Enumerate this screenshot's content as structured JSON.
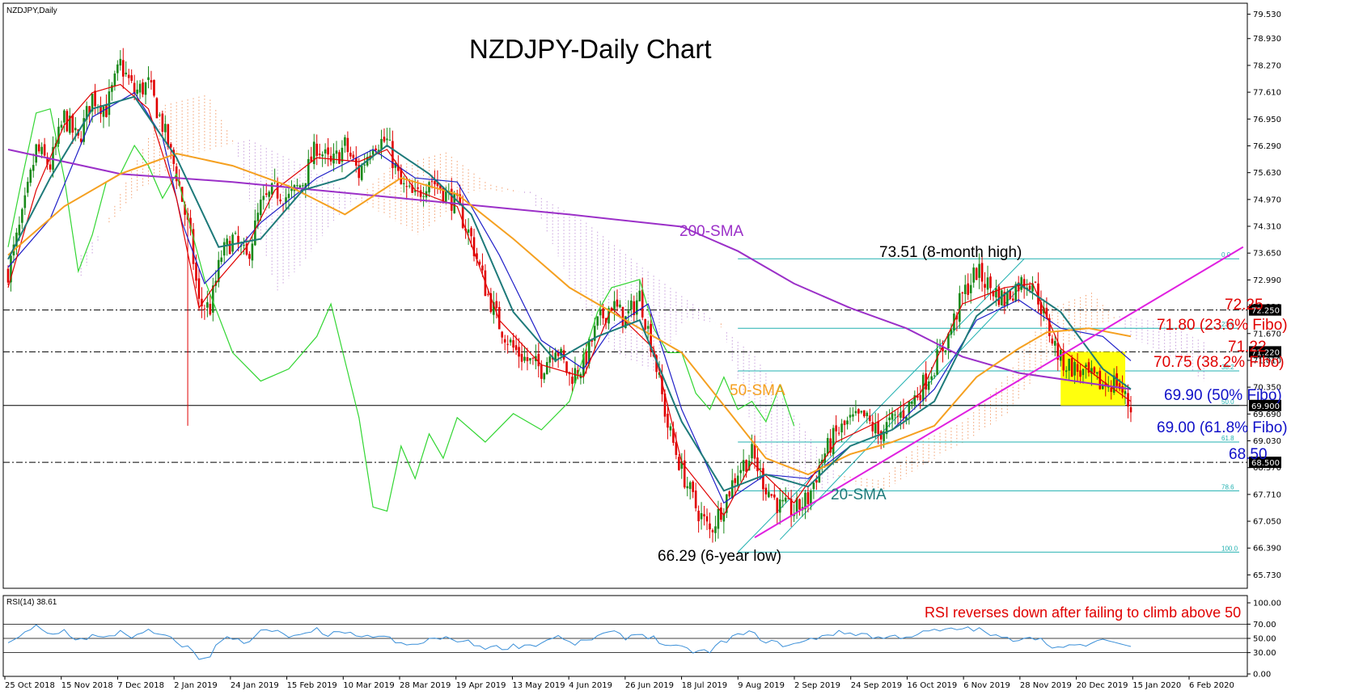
{
  "symbol_label": "NZDJPY,Daily",
  "rsi_label": "RSI(14) 38.61",
  "chart_title": "NZDJPY-Daily Chart",
  "colors": {
    "bull": "#1a8a1a",
    "bear": "#e00000",
    "sma200": "#9b30c8",
    "sma50": "#f5a020",
    "sma20": "#1e7a7a",
    "tenkan": "#e00000",
    "kijun": "#2020c8",
    "chikou": "#33d633",
    "trendline": "#e020e0",
    "fib": "#20b0b0",
    "highlight": "#ffff00",
    "rsi": "#3a8fd8",
    "annotation_red": "#e00000",
    "annotation_blue": "#1010c8",
    "annotation_teal": "#1e7a7a",
    "annotation_orange": "#f5a020",
    "annotation_purple": "#9b30c8"
  },
  "annotations": {
    "sma200": "200-SMA",
    "sma50": "50-SMA",
    "sma20": "20-SMA",
    "high": "73.51 (8-month high)",
    "low": "66.29 (6-year low)",
    "lvl_7225": "72.25",
    "fib_236": "71.80 (23.6% Fibo)",
    "lvl_7122": "71.22",
    "fib_382": "70.75 (38.2% Fibo)",
    "fib_50": "69.90 (50% Fibo)",
    "fib_618": "69.00 (61.8% Fibo)",
    "lvl_6850": "68.50",
    "rsi_note": "RSI reverses down after failing to climb above 50"
  },
  "fib_tags": [
    "0.0",
    "23.6",
    "38.2",
    "50.0",
    "61.8",
    "78.6",
    "100.0"
  ],
  "chart_data": {
    "type": "candlestick",
    "title": "NZDJPY-Daily Chart",
    "price_ticks": [
      "79.530",
      "78.930",
      "78.270",
      "77.610",
      "76.950",
      "76.290",
      "75.630",
      "74.970",
      "74.310",
      "73.650",
      "72.990",
      "72.330",
      "71.670",
      "71.010",
      "70.350",
      "69.690",
      "69.030",
      "68.370",
      "67.710",
      "67.050",
      "66.390",
      "65.730"
    ],
    "price_range": [
      65.4,
      79.8
    ],
    "highlighted_prices": [
      "72.250",
      "71.220",
      "69.900",
      "68.500"
    ],
    "x_labels": [
      "25 Oct 2018",
      "15 Nov 2018",
      "7 Dec 2018",
      "2 Jan 2019",
      "24 Jan 2019",
      "15 Feb 2019",
      "10 Mar 2019",
      "28 Mar 2019",
      "19 Apr 2019",
      "13 May 2019",
      "4 Jun 2019",
      "26 Jun 2019",
      "18 Jul 2019",
      "9 Aug 2019",
      "2 Sep 2019",
      "24 Sep 2019",
      "16 Oct 2019",
      "6 Nov 2019",
      "28 Nov 2019",
      "20 Dec 2019",
      "15 Jan 2020",
      "6 Feb 2020"
    ],
    "horizontal_levels": [
      72.25,
      71.22,
      68.5
    ],
    "fib_levels": [
      {
        "pct": "0.0",
        "price": 73.51
      },
      {
        "pct": "23.6",
        "price": 71.8
      },
      {
        "pct": "38.2",
        "price": 70.75
      },
      {
        "pct": "50.0",
        "price": 69.9
      },
      {
        "pct": "61.8",
        "price": 69.0
      },
      {
        "pct": "78.6",
        "price": 67.8
      },
      {
        "pct": "100.0",
        "price": 66.29
      }
    ],
    "close_path": [
      [
        0,
        73.2
      ],
      [
        5,
        74.5
      ],
      [
        10,
        76.2
      ],
      [
        15,
        75.8
      ],
      [
        20,
        77.0
      ],
      [
        25,
        76.4
      ],
      [
        30,
        77.5
      ],
      [
        35,
        77.2
      ],
      [
        40,
        78.3
      ],
      [
        45,
        77.6
      ],
      [
        50,
        77.8
      ],
      [
        55,
        76.8
      ],
      [
        60,
        75.6
      ],
      [
        65,
        74.0
      ],
      [
        68,
        72.4
      ],
      [
        72,
        72.3
      ],
      [
        76,
        73.6
      ],
      [
        80,
        74.0
      ],
      [
        85,
        73.5
      ],
      [
        90,
        74.8
      ],
      [
        95,
        75.2
      ],
      [
        100,
        75.0
      ],
      [
        105,
        75.4
      ],
      [
        110,
        76.3
      ],
      [
        115,
        75.8
      ],
      [
        120,
        76.3
      ],
      [
        125,
        75.6
      ],
      [
        130,
        76.4
      ],
      [
        135,
        76.4
      ],
      [
        140,
        75.3
      ],
      [
        145,
        75.0
      ],
      [
        150,
        75.5
      ],
      [
        155,
        75.2
      ],
      [
        160,
        74.8
      ],
      [
        165,
        74.0
      ],
      [
        170,
        72.8
      ],
      [
        175,
        71.9
      ],
      [
        180,
        71.3
      ],
      [
        185,
        71.0
      ],
      [
        190,
        70.8
      ],
      [
        195,
        71.4
      ],
      [
        200,
        70.6
      ],
      [
        205,
        70.9
      ],
      [
        210,
        71.9
      ],
      [
        215,
        72.4
      ],
      [
        220,
        72.0
      ],
      [
        225,
        72.6
      ],
      [
        230,
        71.2
      ],
      [
        235,
        69.4
      ],
      [
        240,
        68.3
      ],
      [
        245,
        67.4
      ],
      [
        250,
        66.8
      ],
      [
        255,
        67.5
      ],
      [
        260,
        68.3
      ],
      [
        265,
        68.7
      ],
      [
        270,
        67.9
      ],
      [
        275,
        67.4
      ],
      [
        280,
        67.3
      ],
      [
        285,
        67.6
      ],
      [
        290,
        68.6
      ],
      [
        295,
        69.2
      ],
      [
        300,
        69.5
      ],
      [
        305,
        69.6
      ],
      [
        310,
        69.2
      ],
      [
        315,
        69.5
      ],
      [
        320,
        69.8
      ],
      [
        325,
        70.3
      ],
      [
        330,
        70.9
      ],
      [
        335,
        71.6
      ],
      [
        340,
        72.6
      ],
      [
        345,
        73.2
      ],
      [
        350,
        72.8
      ],
      [
        355,
        72.5
      ],
      [
        360,
        72.9
      ],
      [
        365,
        73.0
      ],
      [
        370,
        71.9
      ],
      [
        375,
        71.0
      ],
      [
        380,
        70.8
      ],
      [
        385,
        70.6
      ],
      [
        390,
        70.4
      ],
      [
        395,
        70.5
      ],
      [
        400,
        69.8
      ]
    ],
    "sma200": [
      [
        0,
        76.2
      ],
      [
        40,
        75.6
      ],
      [
        80,
        75.4
      ],
      [
        140,
        75.0
      ],
      [
        200,
        74.6
      ],
      [
        240,
        74.3
      ],
      [
        260,
        73.7
      ],
      [
        280,
        72.9
      ],
      [
        300,
        72.3
      ],
      [
        320,
        71.8
      ],
      [
        340,
        71.1
      ],
      [
        360,
        70.7
      ],
      [
        380,
        70.5
      ],
      [
        400,
        70.3
      ]
    ],
    "sma50": [
      [
        0,
        73.6
      ],
      [
        20,
        74.8
      ],
      [
        40,
        75.6
      ],
      [
        60,
        76.1
      ],
      [
        80,
        75.8
      ],
      [
        100,
        75.3
      ],
      [
        120,
        74.6
      ],
      [
        140,
        75.5
      ],
      [
        160,
        75.1
      ],
      [
        180,
        74.0
      ],
      [
        200,
        72.8
      ],
      [
        220,
        72.0
      ],
      [
        240,
        71.2
      ],
      [
        255,
        69.9
      ],
      [
        270,
        68.6
      ],
      [
        285,
        68.2
      ],
      [
        300,
        68.7
      ],
      [
        315,
        69.0
      ],
      [
        330,
        69.4
      ],
      [
        345,
        70.6
      ],
      [
        360,
        71.3
      ],
      [
        370,
        71.7
      ],
      [
        385,
        71.8
      ],
      [
        400,
        71.6
      ]
    ],
    "sma20": [
      [
        0,
        73.5
      ],
      [
        15,
        75.5
      ],
      [
        30,
        77.2
      ],
      [
        45,
        77.5
      ],
      [
        60,
        76.0
      ],
      [
        75,
        73.8
      ],
      [
        90,
        74.0
      ],
      [
        105,
        75.2
      ],
      [
        120,
        75.5
      ],
      [
        135,
        76.3
      ],
      [
        150,
        75.6
      ],
      [
        165,
        74.6
      ],
      [
        180,
        72.2
      ],
      [
        195,
        71.0
      ],
      [
        210,
        71.6
      ],
      [
        225,
        72.0
      ],
      [
        240,
        69.5
      ],
      [
        255,
        67.8
      ],
      [
        270,
        68.2
      ],
      [
        285,
        67.9
      ],
      [
        300,
        68.9
      ],
      [
        315,
        69.3
      ],
      [
        330,
        70.0
      ],
      [
        345,
        72.1
      ],
      [
        360,
        72.9
      ],
      [
        375,
        72.2
      ],
      [
        390,
        70.8
      ],
      [
        400,
        70.3
      ]
    ],
    "tenkan": [
      [
        0,
        72.8
      ],
      [
        10,
        75.2
      ],
      [
        20,
        76.8
      ],
      [
        30,
        77.6
      ],
      [
        40,
        77.8
      ],
      [
        50,
        77.2
      ],
      [
        60,
        75.0
      ],
      [
        68,
        72.3
      ],
      [
        75,
        73.0
      ],
      [
        85,
        73.8
      ],
      [
        95,
        75.2
      ],
      [
        110,
        76.0
      ],
      [
        125,
        75.9
      ],
      [
        135,
        76.2
      ],
      [
        145,
        75.2
      ],
      [
        160,
        74.8
      ],
      [
        175,
        72.0
      ],
      [
        190,
        70.9
      ],
      [
        205,
        70.6
      ],
      [
        215,
        72.3
      ],
      [
        230,
        71.3
      ],
      [
        240,
        68.5
      ],
      [
        255,
        67.2
      ],
      [
        265,
        68.5
      ],
      [
        280,
        67.5
      ],
      [
        295,
        69.0
      ],
      [
        310,
        69.5
      ],
      [
        325,
        70.2
      ],
      [
        340,
        72.4
      ],
      [
        355,
        72.8
      ],
      [
        365,
        72.9
      ],
      [
        375,
        71.3
      ],
      [
        390,
        70.5
      ],
      [
        400,
        70.0
      ]
    ],
    "kijun": [
      [
        0,
        73.3
      ],
      [
        15,
        74.5
      ],
      [
        30,
        77.0
      ],
      [
        45,
        77.6
      ],
      [
        55,
        76.5
      ],
      [
        62,
        74.4
      ],
      [
        70,
        72.9
      ],
      [
        80,
        73.6
      ],
      [
        90,
        74.4
      ],
      [
        110,
        75.5
      ],
      [
        130,
        76.2
      ],
      [
        145,
        75.5
      ],
      [
        160,
        75.4
      ],
      [
        175,
        73.6
      ],
      [
        190,
        71.5
      ],
      [
        205,
        70.8
      ],
      [
        215,
        71.8
      ],
      [
        228,
        72.4
      ],
      [
        240,
        69.8
      ],
      [
        255,
        67.5
      ],
      [
        270,
        68.2
      ],
      [
        285,
        68.1
      ],
      [
        300,
        68.9
      ],
      [
        315,
        69.3
      ],
      [
        330,
        70.3
      ],
      [
        345,
        72.0
      ],
      [
        360,
        72.5
      ],
      [
        375,
        71.8
      ],
      [
        390,
        71.6
      ],
      [
        400,
        71.0
      ]
    ],
    "chikou": [
      [
        0,
        73.8
      ],
      [
        5,
        75.5
      ],
      [
        10,
        77.1
      ],
      [
        15,
        77.2
      ],
      [
        20,
        75.5
      ],
      [
        25,
        73.2
      ],
      [
        30,
        74.1
      ],
      [
        35,
        75.4
      ],
      [
        40,
        75.6
      ],
      [
        45,
        76.3
      ],
      [
        50,
        75.8
      ],
      [
        55,
        75.0
      ],
      [
        60,
        75.6
      ],
      [
        70,
        73.0
      ],
      [
        80,
        71.2
      ],
      [
        90,
        70.5
      ],
      [
        100,
        70.8
      ],
      [
        110,
        71.6
      ],
      [
        115,
        72.4
      ],
      [
        120,
        71.0
      ],
      [
        125,
        69.6
      ],
      [
        130,
        67.4
      ],
      [
        135,
        67.3
      ],
      [
        140,
        68.9
      ],
      [
        145,
        68.1
      ],
      [
        150,
        69.2
      ],
      [
        155,
        68.6
      ],
      [
        160,
        69.6
      ],
      [
        170,
        69.0
      ],
      [
        180,
        69.7
      ],
      [
        190,
        69.3
      ],
      [
        200,
        70.0
      ],
      [
        210,
        72.2
      ],
      [
        215,
        72.8
      ],
      [
        225,
        73.0
      ],
      [
        230,
        71.8
      ],
      [
        235,
        71.2
      ],
      [
        240,
        71.2
      ],
      [
        245,
        70.2
      ],
      [
        250,
        69.8
      ],
      [
        255,
        70.6
      ],
      [
        260,
        69.8
      ],
      [
        265,
        70.0
      ],
      [
        270,
        69.5
      ],
      [
        275,
        70.4
      ],
      [
        280,
        69.4
      ]
    ],
    "rsi": {
      "value": 38.61,
      "ticks": [
        "100.00",
        "70.00",
        "50.00",
        "30.00",
        "0.00"
      ],
      "levels": [
        70,
        50,
        30
      ]
    }
  }
}
